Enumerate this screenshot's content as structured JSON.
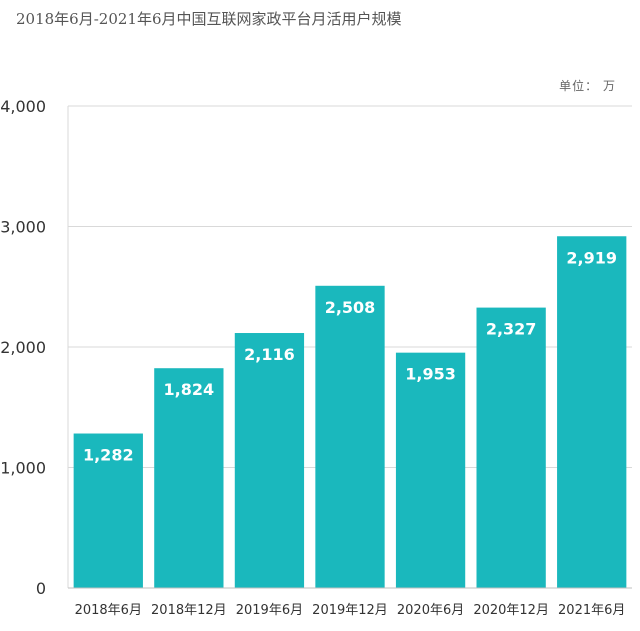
{
  "chart_data": {
    "type": "bar",
    "title": "2018年6月-2021年6月中国互联网家政平台月活用户规模",
    "unit_label": "单位： 万",
    "categories": [
      "2018年6月",
      "2018年12月",
      "2019年6月",
      "2019年12月",
      "2020年6月",
      "2020年12月",
      "2021年6月"
    ],
    "values": [
      1282,
      1824,
      2116,
      2508,
      1953,
      2327,
      2919
    ],
    "value_labels": [
      "1,282",
      "1,824",
      "2,116",
      "2,508",
      "1,953",
      "2,327",
      "2,919"
    ],
    "yticks": [
      0,
      1000,
      2000,
      3000,
      4000
    ],
    "ytick_labels": [
      "0",
      "1,000",
      "2,000",
      "3,000",
      "4,000"
    ],
    "ylim": [
      0,
      4000
    ],
    "grid": true,
    "legend": "none",
    "bar_color": "#1AB8BD",
    "grid_color": "#D9D9D9"
  }
}
